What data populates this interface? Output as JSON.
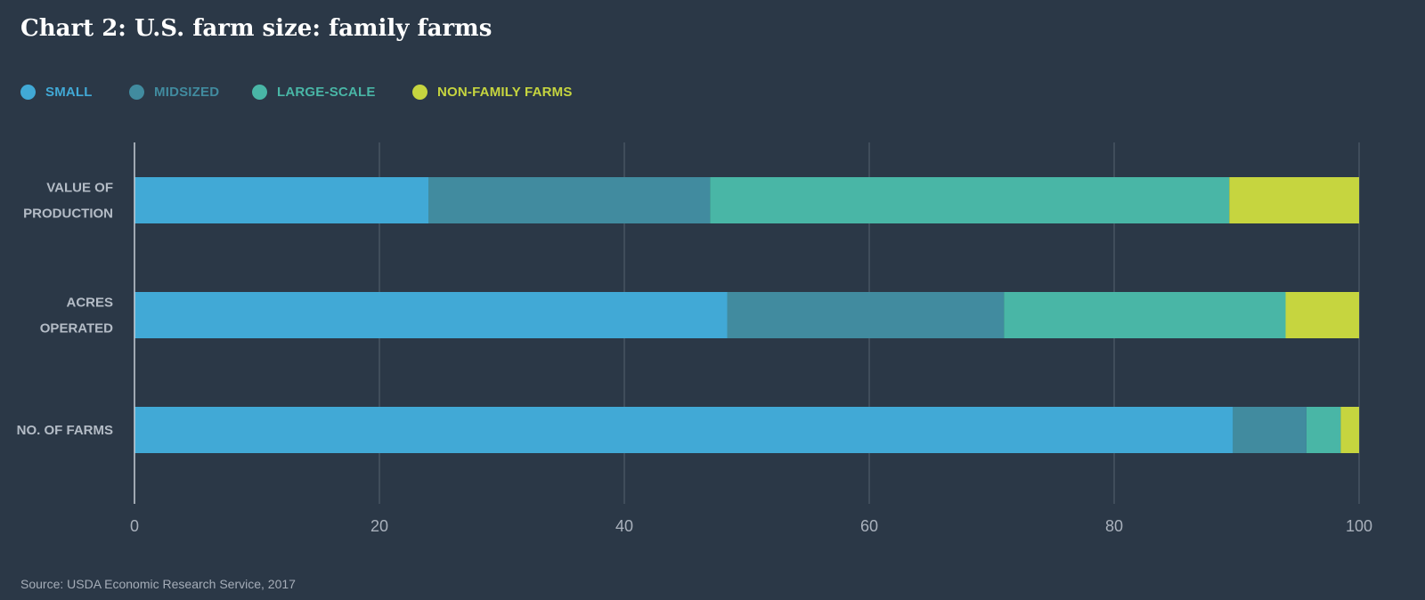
{
  "chart_data": {
    "type": "bar",
    "orientation": "horizontal",
    "stacked": true,
    "title": "Chart 2: U.S. farm size: family farms",
    "categories": [
      "VALUE OF PRODUCTION",
      "ACRES OPERATED",
      "NO. OF FARMS"
    ],
    "series": [
      {
        "name": "SMALL",
        "color": "#41a9d6",
        "values": [
          24.0,
          48.4,
          89.7
        ]
      },
      {
        "name": "MIDSIZED",
        "color": "#418b9f",
        "values": [
          23.0,
          22.6,
          6.0
        ]
      },
      {
        "name": "LARGE-SCALE",
        "color": "#49b6a6",
        "values": [
          42.4,
          23.0,
          2.8
        ]
      },
      {
        "name": "NON-FAMILY FARMS",
        "color": "#c6d53f",
        "values": [
          10.6,
          6.0,
          1.5
        ]
      }
    ],
    "xlim": [
      0,
      100
    ],
    "xticks": [
      0,
      20,
      40,
      60,
      80,
      100
    ],
    "grid": true,
    "legend_position": "top-left",
    "source": "Source: USDA Economic Research Service, 2017"
  }
}
